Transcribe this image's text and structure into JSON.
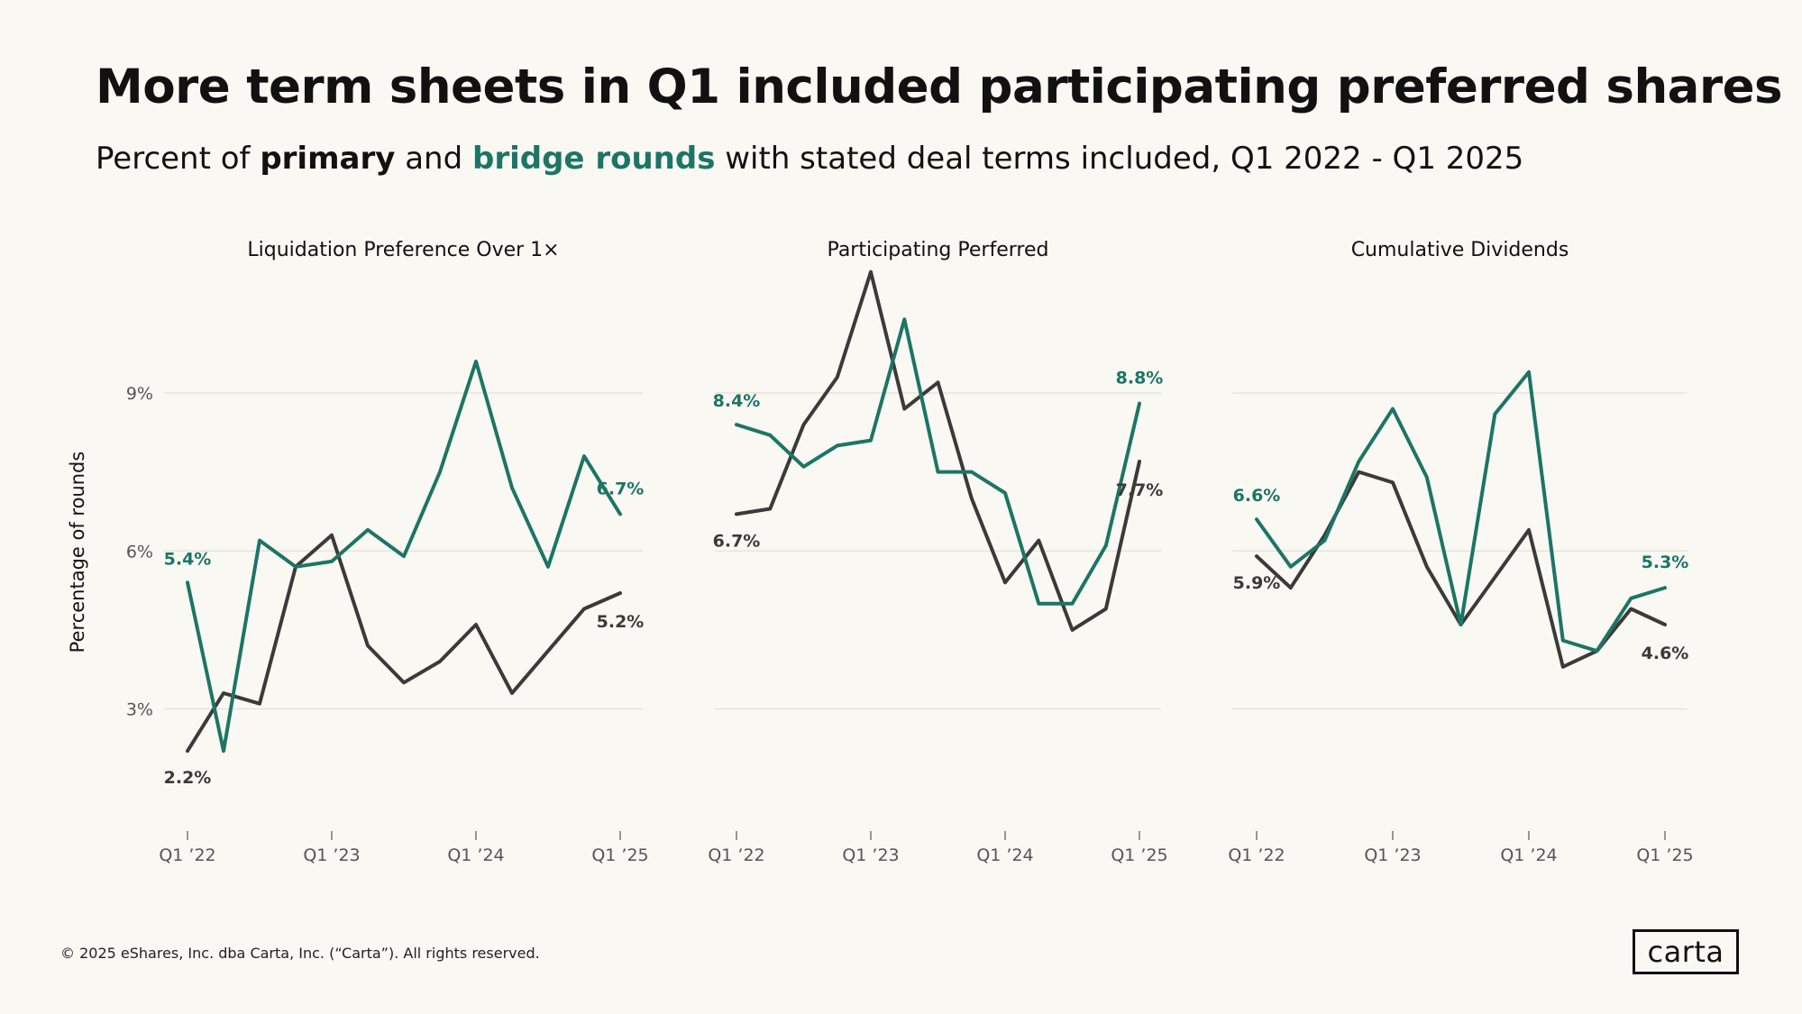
{
  "title": "More term sheets in Q1 included participating preferred shares",
  "subtitle": {
    "prefix": "Percent of ",
    "primary": "primary",
    "and": " and ",
    "bridge": "bridge rounds",
    "suffix": " with stated deal terms included, Q1 2022 -  Q1 2025"
  },
  "colors": {
    "primary": "#3a3a3a",
    "bridge": "#1c7565",
    "grid": "#e3e0d8",
    "axis_text": "#555555"
  },
  "footer": "© 2025 eShares, Inc. dba Carta, Inc. (“Carta”). All rights reserved.",
  "logo": "carta",
  "chart_data": [
    {
      "type": "line",
      "title": "Liquidation Preference Over 1×",
      "ylabel": "Percentage of rounds",
      "yticks": [
        {
          "value": 3,
          "label": "3%"
        },
        {
          "value": 6,
          "label": "6%"
        },
        {
          "value": 9,
          "label": "9%"
        }
      ],
      "ylim": [
        0.8,
        11.5
      ],
      "xticks": [
        {
          "index": 0,
          "label": "Q1 ’22"
        },
        {
          "index": 4,
          "label": "Q1 ’23"
        },
        {
          "index": 8,
          "label": "Q1 ’24"
        },
        {
          "index": 12,
          "label": "Q1 ’25"
        }
      ],
      "series": [
        {
          "name": "primary",
          "values": [
            2.2,
            3.3,
            3.1,
            5.7,
            6.3,
            4.2,
            3.5,
            3.9,
            4.6,
            3.3,
            4.1,
            4.9,
            5.2
          ],
          "start_label": "2.2%",
          "end_label": "5.2%"
        },
        {
          "name": "bridge rounds",
          "values": [
            5.4,
            2.2,
            6.2,
            5.7,
            5.8,
            6.4,
            5.9,
            7.5,
            9.6,
            7.2,
            5.7,
            7.8,
            6.7
          ],
          "start_label": "5.4%",
          "end_label": "6.7%"
        }
      ]
    },
    {
      "type": "line",
      "title": "Participating Perferred",
      "ylabel": "",
      "yticks": [
        {
          "value": 3,
          "label": ""
        },
        {
          "value": 6,
          "label": ""
        },
        {
          "value": 9,
          "label": ""
        }
      ],
      "ylim": [
        0.8,
        11.5
      ],
      "xticks": [
        {
          "index": 0,
          "label": "Q1 ’22"
        },
        {
          "index": 4,
          "label": "Q1 ’23"
        },
        {
          "index": 8,
          "label": "Q1 ’24"
        },
        {
          "index": 12,
          "label": "Q1 ’25"
        }
      ],
      "series": [
        {
          "name": "primary",
          "values": [
            6.7,
            6.8,
            8.4,
            9.3,
            11.3,
            8.7,
            9.2,
            7.0,
            5.4,
            6.2,
            4.5,
            4.9,
            7.7
          ],
          "start_label": "6.7%",
          "end_label": "7.7%"
        },
        {
          "name": "bridge rounds",
          "values": [
            8.4,
            8.2,
            7.6,
            8.0,
            8.1,
            10.4,
            7.5,
            7.5,
            7.1,
            5.0,
            5.0,
            6.1,
            8.8
          ],
          "start_label": "8.4%",
          "end_label": "8.8%"
        }
      ]
    },
    {
      "type": "line",
      "title": "Cumulative Dividends",
      "ylabel": "",
      "yticks": [
        {
          "value": 3,
          "label": ""
        },
        {
          "value": 6,
          "label": ""
        },
        {
          "value": 9,
          "label": ""
        }
      ],
      "ylim": [
        0.8,
        11.5
      ],
      "xticks": [
        {
          "index": 0,
          "label": "Q1 ’22"
        },
        {
          "index": 4,
          "label": "Q1 ’23"
        },
        {
          "index": 8,
          "label": "Q1 ’24"
        },
        {
          "index": 12,
          "label": "Q1 ’25"
        }
      ],
      "series": [
        {
          "name": "primary",
          "values": [
            5.9,
            5.3,
            6.3,
            7.5,
            7.3,
            5.7,
            4.6,
            5.5,
            6.4,
            3.8,
            4.1,
            4.9,
            4.6
          ],
          "start_label": "5.9%",
          "end_label": "4.6%"
        },
        {
          "name": "bridge rounds",
          "values": [
            6.6,
            5.7,
            6.2,
            7.7,
            8.7,
            7.4,
            4.6,
            8.6,
            9.4,
            4.3,
            4.1,
            5.1,
            5.3
          ],
          "start_label": "6.6%",
          "end_label": "5.3%"
        }
      ]
    }
  ]
}
